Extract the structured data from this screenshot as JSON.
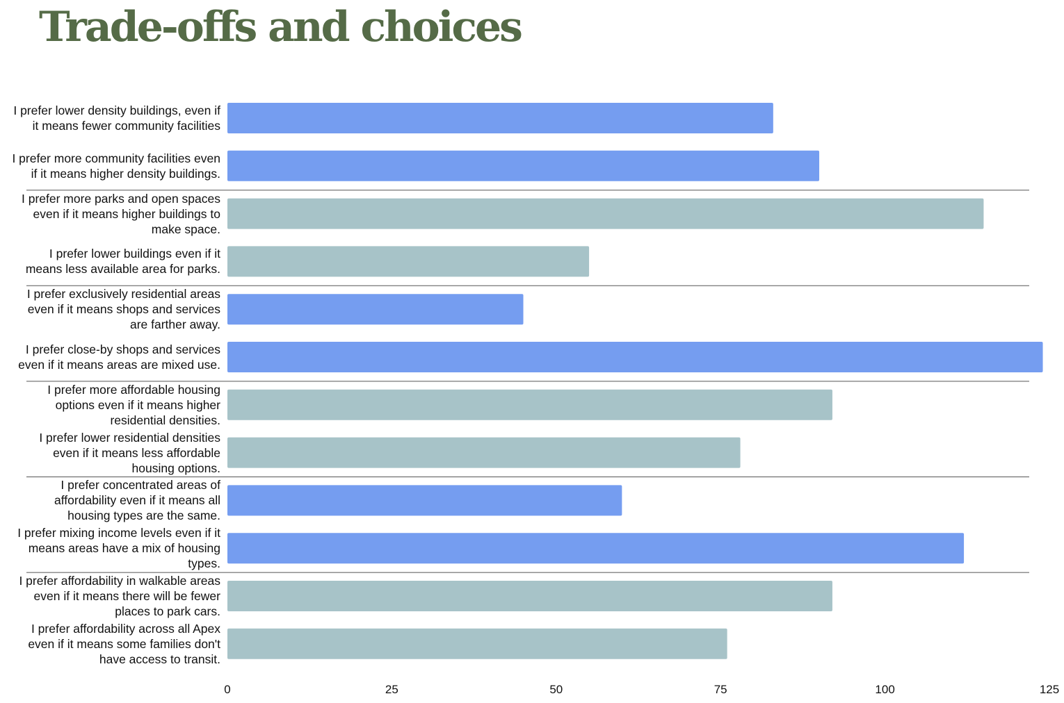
{
  "chart_data": {
    "type": "bar",
    "orientation": "horizontal",
    "title": "Trade-offs and choices",
    "xlabel": "",
    "ylabel": "",
    "xlim": [
      0,
      125
    ],
    "x_ticks": [
      0,
      25,
      50,
      75,
      100,
      125
    ],
    "grid": false,
    "legend": "none",
    "colors": {
      "blue": "#759df0",
      "teal": "#a7c3c8",
      "divider": "#555555"
    },
    "categories": [
      "I prefer lower density buildings, even if it means fewer community facilities",
      "I prefer more community facilities even if it means higher density buildings.",
      "I prefer more parks and open spaces even if it means higher buildings to make space.",
      "I prefer lower buildings even if it means less available area for parks.",
      "I prefer exclusively residential areas even if it means shops and services are farther away.",
      "I prefer close-by shops and services even if it means areas are mixed use.",
      "I prefer more affordable housing options even if it means higher residential densities.",
      "I prefer lower residential densities even if it means less affordable housing options.",
      "I prefer concentrated areas of affordability even if it means all housing types are the same.",
      "I prefer mixing income levels even if it means areas have a mix of housing types.",
      "I prefer affordability in walkable areas even if it means there will be fewer places to park cars.",
      "I prefer affordability across all Apex even if it means some families don't have access to transit."
    ],
    "values": [
      83,
      90,
      115,
      55,
      45,
      124,
      92,
      78,
      60,
      112,
      92,
      76
    ],
    "bar_colors": [
      "blue",
      "blue",
      "teal",
      "teal",
      "blue",
      "blue",
      "teal",
      "teal",
      "blue",
      "blue",
      "teal",
      "teal"
    ]
  }
}
